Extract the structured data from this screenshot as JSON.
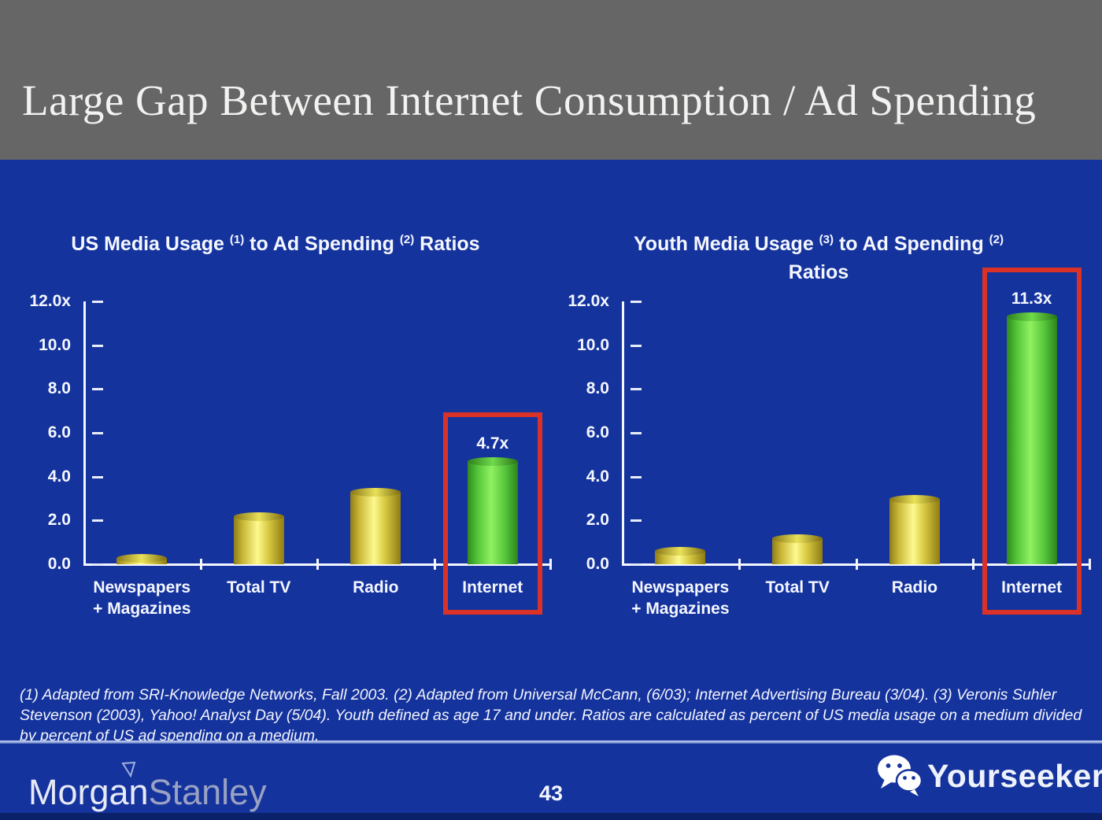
{
  "slide": {
    "header_title": "Large Gap Between Internet Consumption / Ad Spending",
    "footnote": "(1) Adapted from SRI-Knowledge Networks, Fall 2003.  (2) Adapted from Universal McCann, (6/03); Internet Advertising Bureau (3/04). (3) Veronis Suhler Stevenson (2003), Yahoo! Analyst Day (5/04).  Youth defined as age 17 and under.  Ratios are calculated as percent of US media usage on a medium divided by percent of US ad spending on a medium.",
    "page_number": "43",
    "brand_word1": "Morgan",
    "brand_word2": "Stanley",
    "watermark_text": "Yourseeker"
  },
  "colors": {
    "header_gray": "#666667",
    "body_blue": "#15339d",
    "bar_yellow": "#f5ee62",
    "bar_green": "#5ecb3c",
    "highlight_red": "#da3226",
    "axis_text": "#ffffff",
    "bottom_strip_navy": "#0b2169"
  },
  "chart_data": [
    {
      "type": "bar",
      "title": "US Media Usage (1) to Ad Spending (2) Ratios",
      "title_lines": [
        [
          {
            "t": "US Media Usage "
          },
          {
            "sup": "(1)"
          },
          {
            "t": " to Ad Spending "
          },
          {
            "sup": "(2)"
          },
          {
            "t": " Ratios"
          }
        ]
      ],
      "categories": [
        "Newspapers\n+ Magazines",
        "Total TV",
        "Radio",
        "Internet"
      ],
      "values": [
        0.3,
        2.2,
        3.3,
        4.7
      ],
      "bar_colors": [
        "yellow",
        "yellow",
        "yellow",
        "green"
      ],
      "highlight_index": 3,
      "highlight_label": "4.7x",
      "xlabel": "",
      "ylabel": "",
      "ylim": [
        0,
        12
      ],
      "yticks": [
        "12.0x",
        "10.0",
        "8.0",
        "6.0",
        "4.0",
        "2.0",
        "0.0"
      ],
      "grid": false,
      "legend": false
    },
    {
      "type": "bar",
      "title": "Youth Media Usage (3) to Ad Spending (2) Ratios",
      "title_lines": [
        [
          {
            "t": "Youth Media Usage "
          },
          {
            "sup": "(3)"
          },
          {
            "t": " to Ad Spending "
          },
          {
            "sup": "(2)"
          }
        ],
        [
          {
            "t": "Ratios"
          }
        ]
      ],
      "categories": [
        "Newspapers\n+ Magazines",
        "Total TV",
        "Radio",
        "Internet"
      ],
      "values": [
        0.6,
        1.2,
        3.0,
        11.3
      ],
      "bar_colors": [
        "yellow",
        "yellow",
        "yellow",
        "green"
      ],
      "highlight_index": 3,
      "highlight_label": "11.3x",
      "xlabel": "",
      "ylabel": "",
      "ylim": [
        0,
        12
      ],
      "yticks": [
        "12.0x",
        "10.0",
        "8.0",
        "6.0",
        "4.0",
        "2.0",
        "0.0"
      ],
      "grid": false,
      "legend": false
    }
  ]
}
